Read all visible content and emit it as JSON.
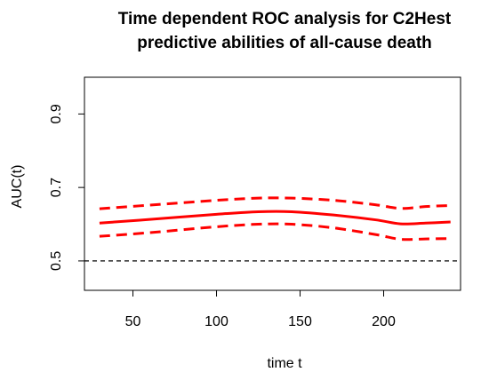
{
  "chart_data": {
    "type": "line",
    "title_lines": [
      "Time dependent ROC analysis for C2Hest",
      "predictive abilities of all-cause death"
    ],
    "xlabel": "time t",
    "ylabel": "AUC(t)",
    "xlim": [
      21,
      246
    ],
    "ylim": [
      0.42,
      1.0
    ],
    "x_ticks": [
      50,
      100,
      150,
      200
    ],
    "y_ticks": [
      0.5,
      0.7,
      0.9
    ],
    "reference_line": {
      "y": 0.5,
      "style": "dashed",
      "color": "#000000"
    },
    "grid": false,
    "series": [
      {
        "style": "solid",
        "color": "#ff0000",
        "x": [
          30,
          60,
          100,
          125,
          145,
          170,
          195,
          210,
          225,
          240
        ],
        "y": [
          0.603,
          0.613,
          0.627,
          0.634,
          0.634,
          0.625,
          0.612,
          0.601,
          0.603,
          0.606
        ]
      },
      {
        "style": "dashed",
        "color": "#ff0000",
        "x": [
          30,
          60,
          100,
          125,
          145,
          170,
          195,
          210,
          225,
          240
        ],
        "y": [
          0.642,
          0.652,
          0.665,
          0.671,
          0.671,
          0.665,
          0.653,
          0.643,
          0.648,
          0.651
        ]
      },
      {
        "style": "dashed",
        "color": "#ff0000",
        "x": [
          30,
          60,
          100,
          125,
          145,
          170,
          195,
          210,
          225,
          240
        ],
        "y": [
          0.567,
          0.577,
          0.593,
          0.6,
          0.6,
          0.59,
          0.572,
          0.559,
          0.56,
          0.561
        ]
      }
    ]
  }
}
